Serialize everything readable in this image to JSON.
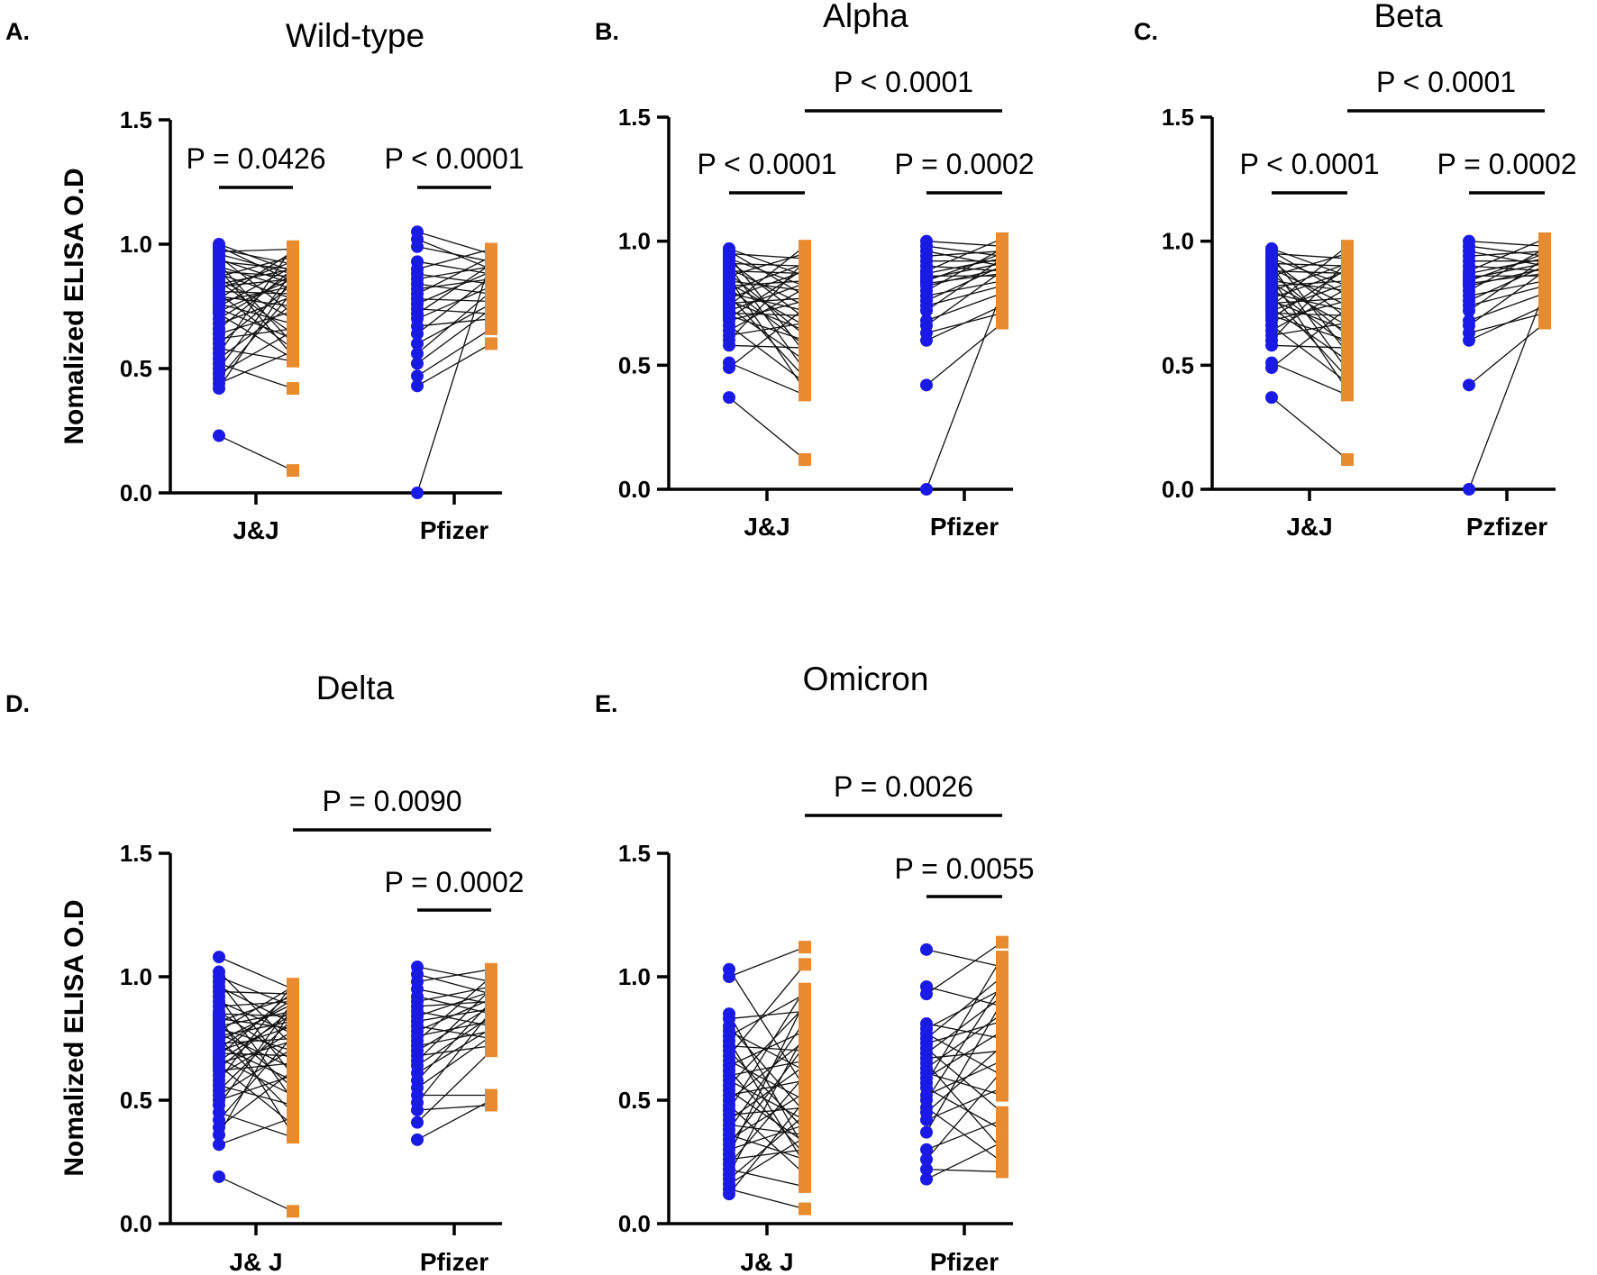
{
  "figure": {
    "series_colors": {
      "before": "#1a1ae6",
      "after": "#e88a2e"
    }
  },
  "chart_data": [
    {
      "panel": "A.",
      "type": "scatter",
      "title": "Wild-type",
      "ylabel": "Nomalized ELISA O.D",
      "xlabel": "",
      "ylim": [
        0,
        1.5
      ],
      "yticks": [
        "0.0",
        "0.5",
        "1.0",
        "1.5"
      ],
      "categories": [
        "J&J",
        "Pfizer"
      ],
      "comparisons": [
        {
          "label": "P = 0.0426",
          "between": [
            "J&J before",
            "J&J after"
          ]
        },
        {
          "label": "P < 0.0001",
          "between": [
            "Pfizer before",
            "Pfizer after"
          ]
        }
      ],
      "groups": [
        {
          "category": "J&J",
          "before": [
            1.0,
            0.99,
            0.98,
            0.97,
            0.96,
            0.95,
            0.94,
            0.93,
            0.92,
            0.91,
            0.9,
            0.89,
            0.88,
            0.87,
            0.86,
            0.85,
            0.84,
            0.83,
            0.82,
            0.81,
            0.8,
            0.79,
            0.78,
            0.77,
            0.76,
            0.75,
            0.74,
            0.73,
            0.72,
            0.7,
            0.68,
            0.66,
            0.64,
            0.62,
            0.6,
            0.58,
            0.56,
            0.54,
            0.52,
            0.5,
            0.48,
            0.46,
            0.44,
            0.42,
            0.23
          ],
          "after": [
            0.89,
            0.85,
            0.92,
            0.98,
            0.88,
            0.72,
            0.84,
            0.9,
            0.6,
            0.82,
            0.55,
            0.87,
            0.78,
            0.95,
            0.7,
            0.64,
            0.9,
            0.86,
            0.93,
            0.8,
            0.58,
            0.75,
            0.97,
            0.83,
            0.68,
            0.91,
            0.62,
            0.86,
            0.54,
            0.88,
            0.79,
            0.9,
            0.73,
            0.66,
            0.84,
            0.53,
            0.99,
            0.76,
            0.42,
            0.89,
            0.65,
            0.81,
            0.57,
            0.87,
            0.09
          ]
        },
        {
          "category": "Pfizer",
          "before": [
            1.05,
            1.02,
            0.99,
            0.93,
            0.9,
            0.88,
            0.86,
            0.84,
            0.82,
            0.8,
            0.78,
            0.76,
            0.74,
            0.72,
            0.7,
            0.67,
            0.64,
            0.6,
            0.56,
            0.52,
            0.47,
            0.43,
            0.0
          ],
          "after": [
            0.96,
            0.9,
            0.93,
            0.88,
            0.98,
            0.84,
            0.91,
            0.8,
            0.86,
            0.95,
            0.77,
            0.89,
            0.72,
            0.92,
            0.83,
            0.7,
            0.87,
            0.76,
            0.81,
            0.74,
            0.66,
            0.6,
            0.94
          ]
        }
      ]
    },
    {
      "panel": "B.",
      "type": "scatter",
      "title": "Alpha",
      "ylabel": "",
      "xlabel": "",
      "ylim": [
        0,
        1.5
      ],
      "yticks": [
        "0.0",
        "0.5",
        "1.0",
        "1.5"
      ],
      "categories": [
        "J&J",
        "Pfizer"
      ],
      "comparisons": [
        {
          "label": "P < 0.0001",
          "between": [
            "J&J before",
            "J&J after"
          ]
        },
        {
          "label": "P = 0.0002",
          "between": [
            "Pfizer before",
            "Pfizer after"
          ]
        },
        {
          "label": "P < 0.0001",
          "between": [
            "J&J after",
            "Pfizer after"
          ]
        }
      ],
      "groups": [
        {
          "category": "J&J",
          "before": [
            0.97,
            0.96,
            0.95,
            0.94,
            0.93,
            0.92,
            0.91,
            0.9,
            0.89,
            0.88,
            0.87,
            0.86,
            0.85,
            0.84,
            0.83,
            0.82,
            0.81,
            0.8,
            0.79,
            0.78,
            0.77,
            0.76,
            0.75,
            0.74,
            0.73,
            0.72,
            0.71,
            0.7,
            0.69,
            0.68,
            0.66,
            0.64,
            0.62,
            0.6,
            0.58,
            0.51,
            0.49,
            0.37
          ],
          "after": [
            0.86,
            0.78,
            0.93,
            0.55,
            0.82,
            0.69,
            0.9,
            0.48,
            0.74,
            0.87,
            0.62,
            0.95,
            0.4,
            0.8,
            0.66,
            0.84,
            0.58,
            0.91,
            0.72,
            0.45,
            0.88,
            0.64,
            0.77,
            0.98,
            0.52,
            0.83,
            0.7,
            0.6,
            0.89,
            0.76,
            0.43,
            0.81,
            0.67,
            0.92,
            0.57,
            0.38,
            0.73,
            0.12
          ]
        },
        {
          "category": "Pfizer",
          "before": [
            1.0,
            0.98,
            0.96,
            0.94,
            0.92,
            0.9,
            0.88,
            0.87,
            0.86,
            0.85,
            0.84,
            0.83,
            0.82,
            0.8,
            0.78,
            0.76,
            0.74,
            0.72,
            0.68,
            0.66,
            0.63,
            0.6,
            0.42,
            0.0
          ],
          "after": [
            0.98,
            0.94,
            0.9,
            0.96,
            0.92,
            0.88,
            1.01,
            0.93,
            0.86,
            0.91,
            0.95,
            0.87,
            0.89,
            0.97,
            0.84,
            0.9,
            0.82,
            0.93,
            0.79,
            0.88,
            0.71,
            0.74,
            0.67,
            0.8
          ]
        }
      ]
    },
    {
      "panel": "C.",
      "type": "scatter",
      "title": "Beta",
      "ylabel": "",
      "xlabel": "",
      "ylim": [
        0,
        1.5
      ],
      "yticks": [
        "0.0",
        "0.5",
        "1.0",
        "1.5"
      ],
      "categories": [
        "J&J",
        "Pzfizer"
      ],
      "comparisons": [
        {
          "label": "P < 0.0001",
          "between": [
            "J&J before",
            "J&J after"
          ]
        },
        {
          "label": "P = 0.0002",
          "between": [
            "Pzfizer before",
            "Pzfizer after"
          ]
        },
        {
          "label": "P < 0.0001",
          "between": [
            "J&J after",
            "Pzfizer after"
          ]
        }
      ],
      "groups": [
        {
          "category": "J&J",
          "before": [
            0.97,
            0.96,
            0.95,
            0.94,
            0.93,
            0.92,
            0.91,
            0.9,
            0.89,
            0.88,
            0.87,
            0.86,
            0.85,
            0.84,
            0.83,
            0.82,
            0.81,
            0.8,
            0.79,
            0.78,
            0.77,
            0.76,
            0.75,
            0.74,
            0.73,
            0.72,
            0.71,
            0.7,
            0.69,
            0.68,
            0.66,
            0.64,
            0.62,
            0.6,
            0.58,
            0.51,
            0.49,
            0.37
          ],
          "after": [
            0.86,
            0.78,
            0.93,
            0.55,
            0.82,
            0.69,
            0.9,
            0.48,
            0.74,
            0.87,
            0.62,
            0.95,
            0.4,
            0.8,
            0.66,
            0.84,
            0.58,
            0.91,
            0.72,
            0.45,
            0.88,
            0.64,
            0.77,
            0.98,
            0.52,
            0.83,
            0.7,
            0.6,
            0.89,
            0.76,
            0.43,
            0.81,
            0.67,
            0.92,
            0.57,
            0.38,
            0.73,
            0.12
          ]
        },
        {
          "category": "Pzfizer",
          "before": [
            1.0,
            0.98,
            0.96,
            0.94,
            0.92,
            0.9,
            0.88,
            0.87,
            0.86,
            0.85,
            0.84,
            0.83,
            0.82,
            0.8,
            0.78,
            0.76,
            0.74,
            0.72,
            0.68,
            0.66,
            0.63,
            0.6,
            0.42,
            0.0
          ],
          "after": [
            0.98,
            0.94,
            0.9,
            0.96,
            0.92,
            0.88,
            1.01,
            0.93,
            0.86,
            0.91,
            0.95,
            0.87,
            0.89,
            0.97,
            0.84,
            0.9,
            0.82,
            0.93,
            0.79,
            0.88,
            0.71,
            0.74,
            0.67,
            0.8
          ]
        }
      ]
    },
    {
      "panel": "D.",
      "type": "scatter",
      "title": "Delta",
      "ylabel": "Nomalized ELISA O.D",
      "xlabel": "",
      "ylim": [
        0,
        1.5
      ],
      "yticks": [
        "0.0",
        "0.5",
        "1.0",
        "1.5"
      ],
      "categories": [
        "J& J",
        "Pfizer"
      ],
      "comparisons": [
        {
          "label": "P = 0.0002",
          "between": [
            "Pfizer before",
            "Pfizer after"
          ]
        },
        {
          "label": "P = 0.0090",
          "between": [
            "J& J after",
            "Pfizer after"
          ]
        }
      ],
      "groups": [
        {
          "category": "J& J",
          "before": [
            1.08,
            1.02,
            1.0,
            0.98,
            0.96,
            0.94,
            0.92,
            0.9,
            0.88,
            0.86,
            0.85,
            0.84,
            0.83,
            0.82,
            0.81,
            0.8,
            0.79,
            0.78,
            0.77,
            0.76,
            0.75,
            0.74,
            0.73,
            0.72,
            0.71,
            0.7,
            0.69,
            0.68,
            0.67,
            0.66,
            0.65,
            0.64,
            0.63,
            0.62,
            0.6,
            0.58,
            0.56,
            0.54,
            0.52,
            0.5,
            0.48,
            0.45,
            0.42,
            0.39,
            0.36,
            0.32,
            0.19
          ],
          "after": [
            0.95,
            0.72,
            0.88,
            0.6,
            0.81,
            0.93,
            0.5,
            0.77,
            0.9,
            0.66,
            0.84,
            0.36,
            0.79,
            0.92,
            0.55,
            0.86,
            0.7,
            0.96,
            0.63,
            0.82,
            0.45,
            0.89,
            0.75,
            0.58,
            0.91,
            0.8,
            0.68,
            0.94,
            0.52,
            0.85,
            0.74,
            0.4,
            0.87,
            0.65,
            0.78,
            0.97,
            0.48,
            0.83,
            0.71,
            0.6,
            0.9,
            0.35,
            0.76,
            0.62,
            0.88,
            0.43,
            0.05
          ]
        },
        {
          "category": "Pfizer",
          "before": [
            1.04,
            1.01,
            0.98,
            0.95,
            0.92,
            0.9,
            0.88,
            0.86,
            0.84,
            0.82,
            0.8,
            0.78,
            0.76,
            0.74,
            0.72,
            0.7,
            0.68,
            0.66,
            0.64,
            0.61,
            0.58,
            0.55,
            0.52,
            0.49,
            0.46,
            0.41,
            0.34
          ],
          "after": [
            0.98,
            0.93,
            1.03,
            0.89,
            0.85,
            0.96,
            0.9,
            0.8,
            0.94,
            0.87,
            0.75,
            0.91,
            0.82,
            1.0,
            0.78,
            0.88,
            0.72,
            0.95,
            0.84,
            0.79,
            0.9,
            0.76,
            0.52,
            0.86,
            0.48,
            0.7,
            0.5
          ]
        }
      ]
    },
    {
      "panel": "E.",
      "type": "scatter",
      "title": "Omicron",
      "ylabel": "",
      "xlabel": "",
      "ylim": [
        0,
        1.5
      ],
      "yticks": [
        "0.0",
        "0.5",
        "1.0",
        "1.5"
      ],
      "categories": [
        "J& J",
        "Pfizer"
      ],
      "comparisons": [
        {
          "label": "P = 0.0055",
          "between": [
            "Pfizer before",
            "Pfizer after"
          ]
        },
        {
          "label": "P = 0.0026",
          "between": [
            "J& J after",
            "Pfizer after"
          ]
        }
      ],
      "groups": [
        {
          "category": "J& J",
          "before": [
            1.03,
            1.0,
            0.85,
            0.83,
            0.8,
            0.78,
            0.76,
            0.74,
            0.72,
            0.7,
            0.68,
            0.66,
            0.64,
            0.62,
            0.6,
            0.58,
            0.56,
            0.54,
            0.52,
            0.5,
            0.48,
            0.46,
            0.44,
            0.42,
            0.4,
            0.38,
            0.36,
            0.34,
            0.32,
            0.3,
            0.28,
            0.26,
            0.24,
            0.22,
            0.2,
            0.18,
            0.16,
            0.14,
            0.12
          ],
          "after": [
            0.55,
            1.12,
            0.3,
            0.86,
            0.45,
            0.62,
            0.93,
            0.24,
            0.7,
            0.38,
            1.05,
            0.5,
            0.78,
            0.28,
            0.66,
            0.42,
            0.88,
            0.33,
            0.58,
            0.74,
            0.2,
            0.95,
            0.47,
            0.64,
            0.36,
            0.82,
            0.26,
            0.53,
            0.72,
            0.4,
            0.9,
            0.3,
            0.6,
            0.15,
            0.77,
            0.44,
            0.35,
            0.06,
            0.5
          ]
        },
        {
          "category": "Pfizer",
          "before": [
            1.11,
            0.96,
            0.93,
            0.81,
            0.79,
            0.77,
            0.75,
            0.73,
            0.71,
            0.69,
            0.67,
            0.65,
            0.63,
            0.61,
            0.59,
            0.57,
            0.55,
            0.52,
            0.5,
            0.47,
            0.45,
            0.42,
            0.37,
            0.3,
            0.26,
            0.22,
            0.18
          ],
          "after": [
            1.04,
            0.88,
            1.14,
            0.75,
            0.95,
            0.6,
            1.0,
            0.82,
            0.45,
            0.92,
            0.7,
            0.3,
            0.85,
            0.52,
            0.78,
            1.08,
            0.38,
            0.66,
            0.97,
            0.25,
            0.72,
            0.55,
            0.9,
            0.42,
            0.62,
            0.21,
            0.33
          ]
        }
      ]
    }
  ]
}
